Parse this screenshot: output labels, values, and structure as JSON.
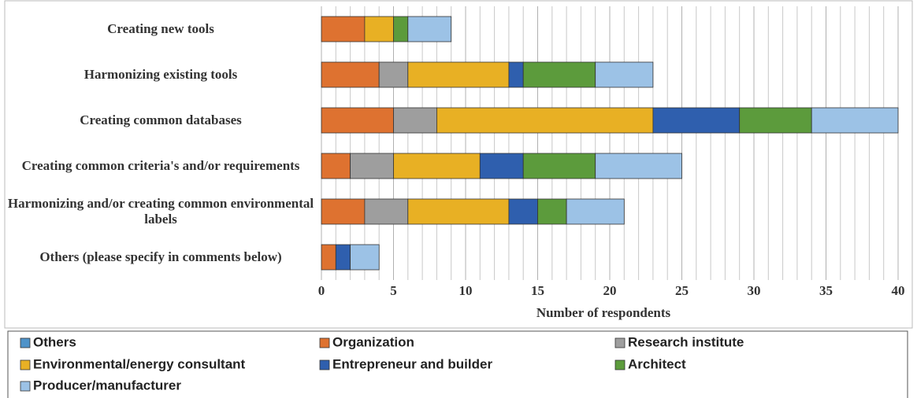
{
  "chart_data": {
    "type": "stacked_barh",
    "x_label": "Number of respondents",
    "categories": [
      "Creating new tools",
      "Harmonizing existing tools",
      "Creating common databases",
      "Creating common criteria's and/or requirements",
      "Harmonizing and/or creating common environmental labels",
      "Others (please specify in comments below)"
    ],
    "series": [
      {
        "name": "Others",
        "color": "#4f93c9",
        "values": [
          0,
          0,
          0,
          0,
          0,
          0
        ]
      },
      {
        "name": "Organization",
        "color": "#de7230",
        "values": [
          3,
          4,
          5,
          2,
          3,
          1
        ]
      },
      {
        "name": "Research institute",
        "color": "#9e9e9e",
        "values": [
          0,
          2,
          3,
          3,
          3,
          0
        ]
      },
      {
        "name": "Environmental/energy consultant",
        "color": "#e8b024",
        "values": [
          2,
          7,
          15,
          6,
          7,
          0
        ]
      },
      {
        "name": "Entrepreneur and builder",
        "color": "#2f5fae",
        "values": [
          0,
          1,
          6,
          3,
          2,
          1
        ]
      },
      {
        "name": "Architect",
        "color": "#5c9b3c",
        "values": [
          1,
          5,
          5,
          5,
          2,
          0
        ]
      },
      {
        "name": "Producer/manufacturer",
        "color": "#9cc2e6",
        "values": [
          3,
          4,
          6,
          6,
          4,
          2
        ]
      }
    ],
    "xlim": [
      0,
      40
    ],
    "xticks": [
      0,
      5,
      10,
      15,
      20,
      25,
      30,
      35,
      40
    ],
    "grid": true,
    "legend": "bottom"
  }
}
